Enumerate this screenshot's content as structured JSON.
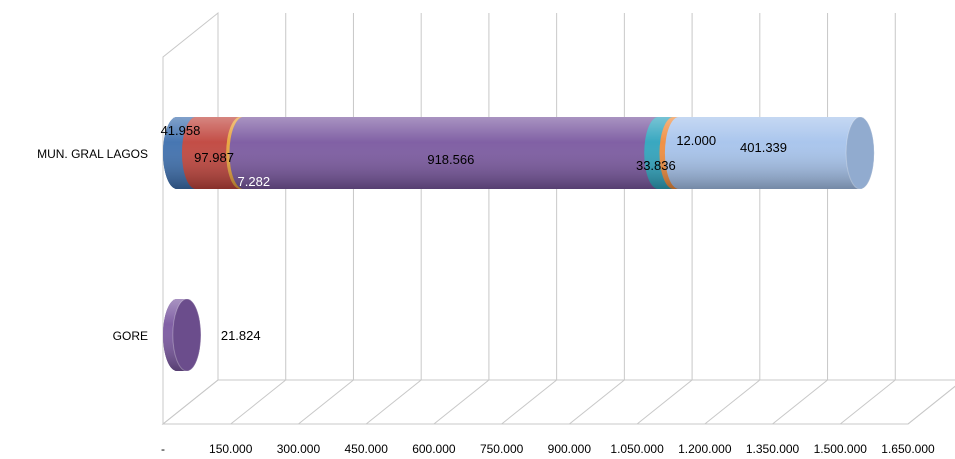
{
  "chart_data": {
    "type": "bar",
    "orientation": "horizontal",
    "stacked": true,
    "style": "3d-cylinder",
    "title": "",
    "xlabel": "",
    "ylabel": "",
    "categories": [
      "GORE",
      "MUN. GRAL LAGOS"
    ],
    "xlim": [
      0,
      1650000
    ],
    "x_tick_labels": [
      "-",
      "150.000",
      "300.000",
      "450.000",
      "600.000",
      "750.000",
      "900.000",
      "1.050.000",
      "1.200.000",
      "1.350.000",
      "1.500.000",
      "1.650.000"
    ],
    "grid": true,
    "legend": "none",
    "series": [
      {
        "color": "#3d6fae",
        "values": [
          0,
          41958
        ],
        "labels": [
          "",
          "41.958"
        ]
      },
      {
        "color": "#c0443c",
        "values": [
          0,
          97987
        ],
        "labels": [
          "",
          "97.987"
        ]
      },
      {
        "color": "#e8a23a",
        "values": [
          0,
          7282
        ],
        "labels": [
          "",
          "7.282"
        ]
      },
      {
        "color": "#7a58a0",
        "values": [
          21824,
          918566
        ],
        "labels": [
          "21.824",
          "918.566"
        ]
      },
      {
        "color": "#2ea3bd",
        "values": [
          0,
          33836
        ],
        "labels": [
          "",
          "33.836"
        ]
      },
      {
        "color": "#f08c3c",
        "values": [
          0,
          12000
        ],
        "labels": [
          "",
          "12.000"
        ]
      },
      {
        "color": "#a6c3ec",
        "values": [
          0,
          401339
        ],
        "labels": [
          "",
          "401.339"
        ]
      }
    ]
  }
}
